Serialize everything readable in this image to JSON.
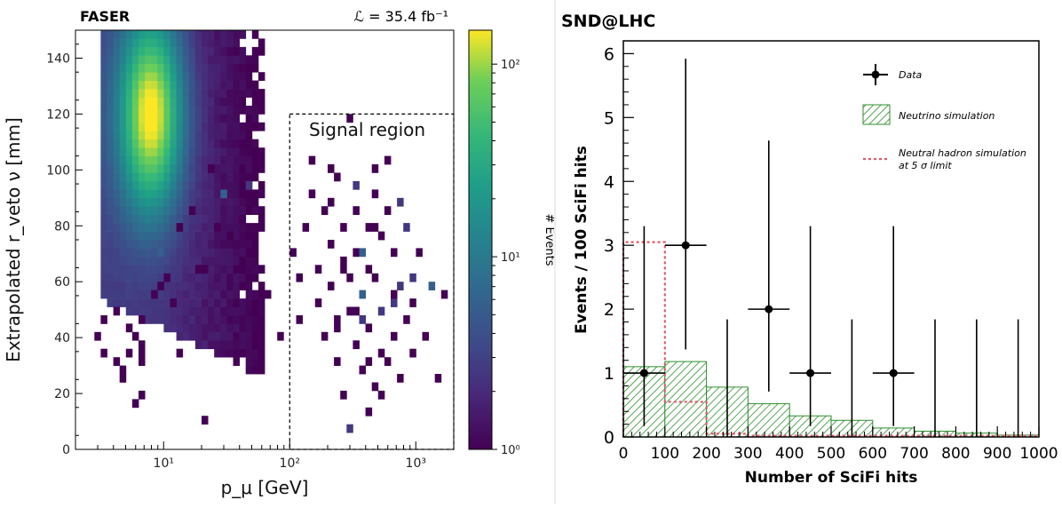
{
  "chart_data": [
    {
      "type": "heatmap",
      "experiment": "FASER",
      "luminosity": "ℒ = 35.4 fb⁻¹",
      "xlabel": "p_μ [GeV]",
      "ylabel": "Extrapolated r_veto ν [mm]",
      "x_scale": "log",
      "xlim": [
        2,
        2000
      ],
      "ylim": [
        0,
        150
      ],
      "x_ticks": [
        {
          "value": 10,
          "label": "10¹"
        },
        {
          "value": 100,
          "label": "10²"
        },
        {
          "value": 1000,
          "label": "10³"
        }
      ],
      "y_ticks": [
        0,
        20,
        40,
        60,
        80,
        100,
        120,
        140
      ],
      "colorbar": {
        "label": "# Events",
        "scale": "log",
        "range": [
          1,
          150
        ],
        "ticks": [
          {
            "value": 1,
            "label": "10⁰"
          },
          {
            "value": 10,
            "label": "10¹"
          },
          {
            "value": 100,
            "label": "10²"
          }
        ]
      },
      "signal_region": {
        "label": "Signal region",
        "x_min": 100,
        "y_max": 120
      },
      "core_peak": {
        "x": 8,
        "y": 120,
        "value": 150
      },
      "sparse_points": [
        [
          3,
          40
        ],
        [
          3.5,
          35
        ],
        [
          3.5,
          45
        ],
        [
          4,
          32
        ],
        [
          4.5,
          28
        ],
        [
          4.8,
          25
        ],
        [
          4.2,
          48
        ],
        [
          5.5,
          35
        ],
        [
          5.5,
          43
        ],
        [
          6,
          40
        ],
        [
          6.5,
          30
        ],
        [
          6.5,
          37
        ],
        [
          7,
          33
        ],
        [
          7,
          45
        ],
        [
          8,
          55
        ],
        [
          9,
          58
        ],
        [
          10,
          70
        ],
        [
          11,
          60
        ],
        [
          12,
          52
        ],
        [
          14,
          78
        ],
        [
          16,
          85
        ],
        [
          18,
          65
        ],
        [
          22,
          10
        ],
        [
          22,
          65
        ],
        [
          25,
          100
        ],
        [
          28,
          80
        ],
        [
          30,
          90
        ],
        [
          35,
          75
        ],
        [
          40,
          90
        ],
        [
          50,
          95
        ],
        [
          55,
          115
        ],
        [
          70,
          55
        ],
        [
          80,
          40
        ],
        [
          14,
          35
        ],
        [
          7,
          20
        ],
        [
          6,
          15
        ],
        [
          130,
          78
        ],
        [
          150,
          92
        ],
        [
          150,
          103
        ],
        [
          160,
          65
        ],
        [
          175,
          52
        ],
        [
          180,
          85
        ],
        [
          190,
          40
        ],
        [
          200,
          100
        ],
        [
          200,
          72
        ],
        [
          210,
          58
        ],
        [
          220,
          88
        ],
        [
          230,
          45
        ],
        [
          240,
          32
        ],
        [
          250,
          97
        ],
        [
          260,
          68
        ],
        [
          270,
          78
        ],
        [
          280,
          20
        ],
        [
          290,
          60
        ],
        [
          300,
          117
        ],
        [
          300,
          8
        ],
        [
          310,
          50
        ],
        [
          320,
          85
        ],
        [
          330,
          37
        ],
        [
          340,
          70
        ],
        [
          350,
          95
        ],
        [
          360,
          27
        ],
        [
          380,
          55
        ],
        [
          400,
          80
        ],
        [
          400,
          12
        ],
        [
          420,
          65
        ],
        [
          430,
          42
        ],
        [
          450,
          22
        ],
        [
          460,
          100
        ],
        [
          480,
          90
        ],
        [
          500,
          60
        ],
        [
          520,
          35
        ],
        [
          540,
          75
        ],
        [
          560,
          48
        ],
        [
          580,
          85
        ],
        [
          600,
          30
        ],
        [
          620,
          103
        ],
        [
          640,
          52
        ],
        [
          660,
          70
        ],
        [
          700,
          40
        ],
        [
          720,
          25
        ],
        [
          750,
          88
        ],
        [
          780,
          58
        ],
        [
          800,
          45
        ],
        [
          850,
          78
        ],
        [
          900,
          62
        ],
        [
          950,
          35
        ],
        [
          1000,
          52
        ],
        [
          1100,
          70
        ],
        [
          1200,
          40
        ],
        [
          1300,
          58
        ],
        [
          1500,
          26
        ],
        [
          1600,
          55
        ],
        [
          2000,
          70
        ],
        [
          110,
          70
        ],
        [
          115,
          45
        ],
        [
          120,
          60
        ],
        [
          330,
          48
        ],
        [
          360,
          45
        ],
        [
          700,
          55
        ],
        [
          250,
          42
        ],
        [
          280,
          65
        ],
        [
          370,
          70
        ],
        [
          420,
          30
        ],
        [
          480,
          80
        ],
        [
          560,
          20
        ]
      ]
    },
    {
      "type": "bar",
      "title": "SND@LHC",
      "xlabel": "Number of SciFi hits",
      "ylabel": "Events / 100 SciFi hits",
      "xlim": [
        0,
        1000
      ],
      "ylim": [
        0,
        6.2
      ],
      "x_ticks": [
        0,
        100,
        200,
        300,
        400,
        500,
        600,
        700,
        800,
        900,
        1000
      ],
      "y_ticks": [
        0,
        1,
        2,
        3,
        4,
        5,
        6
      ],
      "bin_edges": [
        0,
        100,
        200,
        300,
        400,
        500,
        600,
        700,
        800,
        900,
        1000
      ],
      "series": [
        {
          "name": "Neutrino simulation",
          "style": "hatched-bar",
          "values": [
            1.1,
            1.18,
            0.78,
            0.52,
            0.33,
            0.26,
            0.14,
            0.09,
            0.06,
            0.03
          ]
        },
        {
          "name": "Neutral hadron simulation at 5 σ limit",
          "style": "dashed-step",
          "values": [
            3.05,
            0.55,
            0.05,
            0.02,
            0.02,
            0.02,
            0.02,
            0.02,
            0.02,
            0.02
          ]
        },
        {
          "name": "Data",
          "style": "points-with-errors",
          "points": [
            {
              "x": 50,
              "y": 1,
              "err_lo": 0.83,
              "err_hi": 2.3
            },
            {
              "x": 150,
              "y": 3,
              "err_lo": 1.63,
              "err_hi": 2.92
            },
            {
              "x": 250,
              "y": 0,
              "err_lo": 0,
              "err_hi": 1.84
            },
            {
              "x": 350,
              "y": 2,
              "err_lo": 1.29,
              "err_hi": 2.64
            },
            {
              "x": 450,
              "y": 1,
              "err_lo": 0.83,
              "err_hi": 2.3
            },
            {
              "x": 550,
              "y": 0,
              "err_lo": 0,
              "err_hi": 1.84
            },
            {
              "x": 650,
              "y": 1,
              "err_lo": 0.83,
              "err_hi": 2.3
            },
            {
              "x": 750,
              "y": 0,
              "err_lo": 0,
              "err_hi": 1.84
            },
            {
              "x": 850,
              "y": 0,
              "err_lo": 0,
              "err_hi": 1.84
            },
            {
              "x": 950,
              "y": 0,
              "err_lo": 0,
              "err_hi": 1.84
            }
          ]
        }
      ],
      "legend": {
        "placement": "top-right",
        "entries": [
          "Data",
          "Neutrino simulation",
          "Neutral hadron simulation",
          "at 5 σ limit"
        ]
      }
    }
  ]
}
